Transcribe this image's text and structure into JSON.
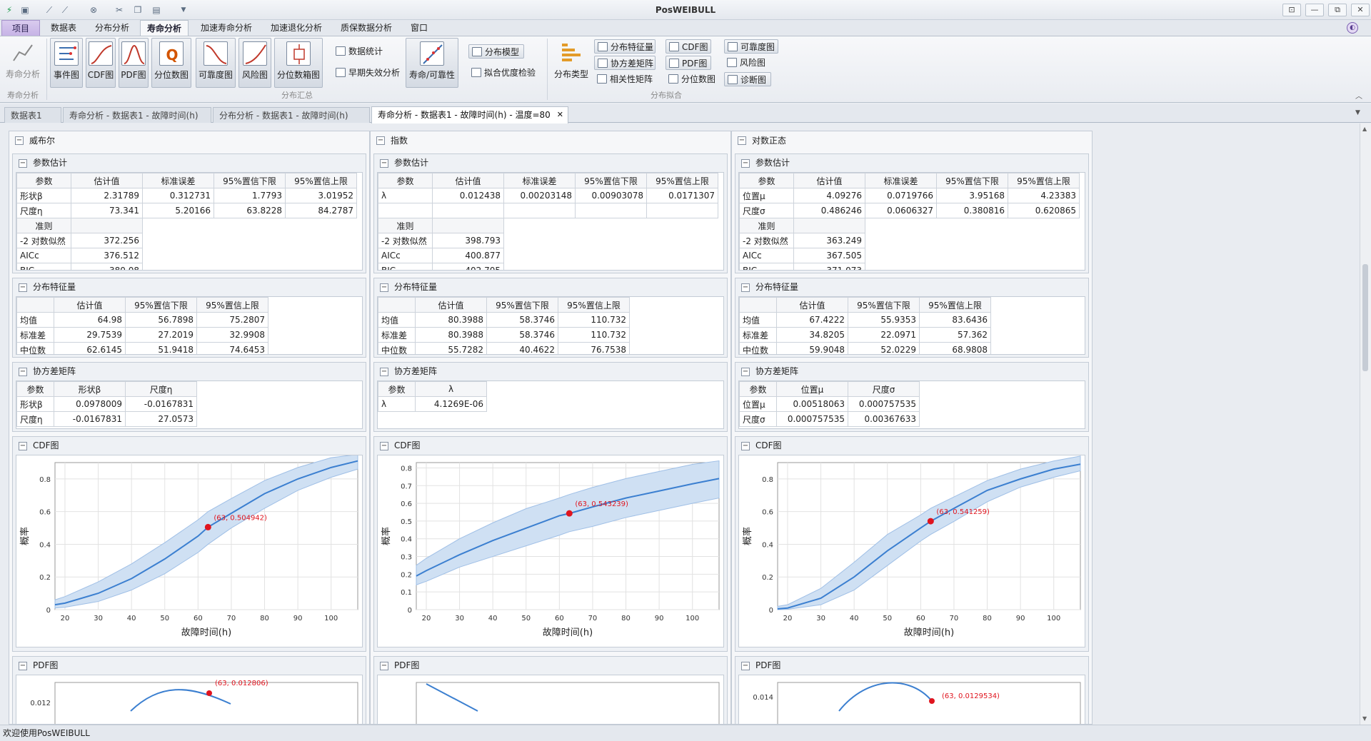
{
  "app": {
    "title": "PosWEIBULL"
  },
  "window_buttons": [
    "⊡",
    "—",
    "⧉",
    "✕"
  ],
  "menu": {
    "project": "项目",
    "tabs": [
      "数据表",
      "分布分析",
      "寿命分析",
      "加速寿命分析",
      "加速退化分析",
      "质保数据分析",
      "窗口"
    ],
    "active": "寿命分析"
  },
  "ribbon": {
    "groups": {
      "life": "寿命分析",
      "summary": "分布汇总",
      "fit": "分布拟合"
    },
    "life_button": "寿命分析",
    "big_buttons": [
      "事件图",
      "CDF图",
      "PDF图",
      "分位数图",
      "可靠度图",
      "风险图",
      "分位数箱图"
    ],
    "summary_small": [
      "数据统计",
      "早期失效分析"
    ],
    "reliability_button": "寿命/可靠性",
    "fit_small": [
      "分布模型",
      "拟合优度检验"
    ],
    "dist_type": "分布类型",
    "col1": [
      "分布特征量",
      "协方差矩阵",
      "相关性矩阵"
    ],
    "col2": [
      "CDF图",
      "PDF图",
      "分位数图"
    ],
    "col3": [
      "可靠度图",
      "风险图",
      "诊断图"
    ]
  },
  "doc_tabs": [
    "数据表1",
    "寿命分析 - 数据表1 - 故障时间(h)",
    "分布分析 - 数据表1 - 故障时间(h)",
    "寿命分析 - 数据表1 - 故障时间(h) - 温度=80"
  ],
  "status": "欢迎使用PosWEIBULL",
  "labels": {
    "param_est": "参数估计",
    "dist_char": "分布特征量",
    "cov": "协方差矩阵",
    "cdf": "CDF图",
    "pdf": "PDF图",
    "criterion": "准则",
    "param": "参数",
    "est": "估计值",
    "se": "标准误差",
    "lo": "95%置信下限",
    "hi": "95%置信上限",
    "xlabel": "故障时间(h)",
    "ylabel": "概率"
  },
  "columns": [
    {
      "name": "威布尔",
      "params": [
        [
          "形状β",
          "2.31789",
          "0.312731",
          "1.7793",
          "3.01952"
        ],
        [
          "尺度η",
          "73.341",
          "5.20166",
          "63.8228",
          "84.2787"
        ]
      ],
      "criteria": [
        [
          "-2 对数似然",
          "372.256"
        ],
        [
          "AICc",
          "376.512"
        ],
        [
          "BIC",
          "380.08"
        ]
      ],
      "chars": [
        [
          "均值",
          "64.98",
          "56.7898",
          "75.2807"
        ],
        [
          "标准差",
          "29.7539",
          "27.2019",
          "32.9908"
        ],
        [
          "中位数",
          "62.6145",
          "51.9418",
          "74.6453"
        ]
      ],
      "cov_head": [
        "参数",
        "形状β",
        "尺度η"
      ],
      "cov": [
        [
          "形状β",
          "0.0978009",
          "-0.0167831"
        ],
        [
          "尺度η",
          "-0.0167831",
          "27.0573"
        ]
      ],
      "cdf_label": "(63, 0.504942)",
      "pdf_label": "(63, 0.012806)",
      "pdf_tick": "0.012"
    },
    {
      "name": "指数",
      "params": [
        [
          "λ",
          "0.012438",
          "0.00203148",
          "0.00903078",
          "0.0171307"
        ],
        [
          "",
          "",
          "",
          "",
          ""
        ]
      ],
      "criteria": [
        [
          "-2 对数似然",
          "398.793"
        ],
        [
          "AICc",
          "400.877"
        ],
        [
          "BIC",
          "402.705"
        ]
      ],
      "chars": [
        [
          "均值",
          "80.3988",
          "58.3746",
          "110.732"
        ],
        [
          "标准差",
          "80.3988",
          "58.3746",
          "110.732"
        ],
        [
          "中位数",
          "55.7282",
          "40.4622",
          "76.7538"
        ]
      ],
      "cov_head": [
        "参数",
        "λ"
      ],
      "cov": [
        [
          "λ",
          "4.1269E-06"
        ]
      ],
      "cdf_label": "(63, 0.543239)",
      "pdf_label": "",
      "pdf_tick": ""
    },
    {
      "name": "对数正态",
      "params": [
        [
          "位置μ",
          "4.09276",
          "0.0719766",
          "3.95168",
          "4.23383"
        ],
        [
          "尺度σ",
          "0.486246",
          "0.0606327",
          "0.380816",
          "0.620865"
        ]
      ],
      "criteria": [
        [
          "-2 对数似然",
          "363.249"
        ],
        [
          "AICc",
          "367.505"
        ],
        [
          "BIC",
          "371.073"
        ]
      ],
      "chars": [
        [
          "均值",
          "67.4222",
          "55.9353",
          "83.6436"
        ],
        [
          "标准差",
          "34.8205",
          "22.0971",
          "57.362"
        ],
        [
          "中位数",
          "59.9048",
          "52.0229",
          "68.9808"
        ]
      ],
      "cov_head": [
        "参数",
        "位置μ",
        "尺度σ"
      ],
      "cov": [
        [
          "位置μ",
          "0.00518063",
          "0.000757535"
        ],
        [
          "尺度σ",
          "0.000757535",
          "0.00367633"
        ]
      ],
      "cdf_label": "(63, 0.541259)",
      "pdf_label": "(63, 0.0129534)",
      "pdf_tick": "0.014"
    }
  ],
  "chart_data": [
    {
      "type": "line",
      "title": "CDF图",
      "xlabel": "故障时间(h)",
      "ylabel": "概率",
      "xlim": [
        17,
        108
      ],
      "ylim": [
        0,
        0.9
      ],
      "xticks": [
        20,
        30,
        40,
        50,
        60,
        70,
        80,
        90,
        100
      ],
      "yticks": [
        "0",
        "0.2",
        "0.4",
        "0.6",
        "0.8"
      ],
      "x": [
        17,
        20,
        30,
        40,
        50,
        60,
        63,
        70,
        80,
        90,
        100,
        108
      ],
      "series": [
        {
          "values": [
            0.03,
            0.04,
            0.1,
            0.19,
            0.31,
            0.45,
            0.505,
            0.59,
            0.71,
            0.8,
            0.87,
            0.91
          ]
        }
      ],
      "band_lo": [
        0.01,
        0.015,
        0.05,
        0.12,
        0.22,
        0.35,
        0.4,
        0.5,
        0.62,
        0.73,
        0.81,
        0.86
      ],
      "band_hi": [
        0.06,
        0.08,
        0.17,
        0.28,
        0.41,
        0.55,
        0.6,
        0.68,
        0.79,
        0.87,
        0.93,
        0.95
      ],
      "marker": [
        63,
        0.504942
      ]
    },
    {
      "type": "line",
      "title": "CDF图",
      "xlabel": "故障时间(h)",
      "ylabel": "概率",
      "xlim": [
        17,
        108
      ],
      "ylim": [
        0,
        0.83
      ],
      "xticks": [
        20,
        30,
        40,
        50,
        60,
        70,
        80,
        90,
        100
      ],
      "yticks": [
        "0",
        "0.1",
        "0.2",
        "0.3",
        "0.4",
        "0.5",
        "0.6",
        "0.7",
        "0.8"
      ],
      "x": [
        17,
        20,
        30,
        40,
        50,
        60,
        63,
        70,
        80,
        90,
        100,
        108
      ],
      "series": [
        {
          "values": [
            0.19,
            0.22,
            0.31,
            0.39,
            0.46,
            0.53,
            0.543,
            0.58,
            0.63,
            0.67,
            0.71,
            0.74
          ]
        }
      ],
      "band_lo": [
        0.14,
        0.16,
        0.24,
        0.3,
        0.36,
        0.42,
        0.44,
        0.47,
        0.52,
        0.56,
        0.6,
        0.63
      ],
      "band_hi": [
        0.25,
        0.29,
        0.4,
        0.49,
        0.57,
        0.63,
        0.65,
        0.69,
        0.74,
        0.78,
        0.82,
        0.84
      ],
      "marker": [
        63,
        0.543239
      ]
    },
    {
      "type": "line",
      "title": "CDF图",
      "xlabel": "故障时间(h)",
      "ylabel": "概率",
      "xlim": [
        17,
        108
      ],
      "ylim": [
        0,
        0.9
      ],
      "xticks": [
        20,
        30,
        40,
        50,
        60,
        70,
        80,
        90,
        100
      ],
      "yticks": [
        "0",
        "0.2",
        "0.4",
        "0.6",
        "0.8"
      ],
      "x": [
        17,
        20,
        30,
        40,
        50,
        60,
        63,
        70,
        80,
        90,
        100,
        108
      ],
      "series": [
        {
          "values": [
            0.005,
            0.01,
            0.07,
            0.2,
            0.36,
            0.5,
            0.541,
            0.62,
            0.73,
            0.8,
            0.86,
            0.89
          ]
        }
      ],
      "band_lo": [
        0,
        0.002,
        0.03,
        0.12,
        0.27,
        0.42,
        0.46,
        0.54,
        0.66,
        0.75,
        0.81,
        0.85
      ],
      "band_hi": [
        0.02,
        0.03,
        0.13,
        0.29,
        0.46,
        0.58,
        0.62,
        0.69,
        0.79,
        0.86,
        0.91,
        0.94
      ],
      "marker": [
        63,
        0.541259
      ]
    }
  ],
  "colors": {
    "band": "#cfe0f3",
    "line": "#3b7fd0",
    "marker": "#e0141e",
    "accent": "#c6b3e6"
  }
}
